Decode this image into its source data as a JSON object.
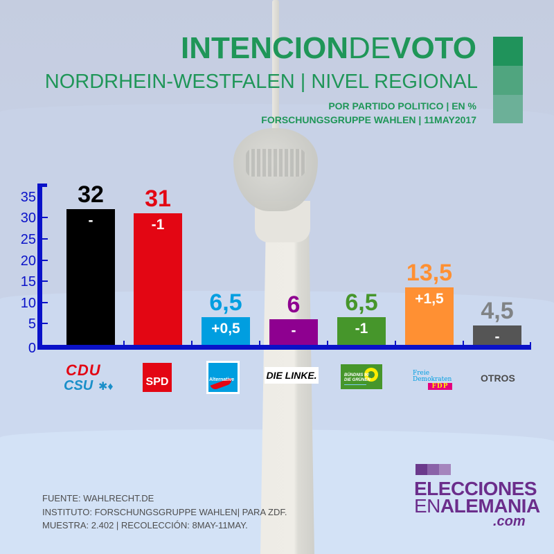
{
  "header": {
    "title_bold": "INTENCION",
    "title_thin": "DE",
    "title_bold2": "VOTO",
    "subtitle": "NORDRHEIN-WESTFALEN | NIVEL REGIONAL",
    "meta_line1": "POR PARTIDO POLITICO | EN %",
    "meta_line2": "FORSCHUNGSGRUPPE WAHLEN | 11MAY2017",
    "swatch_colors": [
      "#20935b",
      "#50a57f",
      "#6cb098"
    ]
  },
  "chart_data": {
    "type": "bar",
    "title": "INTENCION DE VOTO - NORDRHEIN-WESTFALEN | NIVEL REGIONAL",
    "subtitle": "POR PARTIDO POLITICO | EN %",
    "xlabel": "",
    "ylabel": "",
    "ylim": [
      0,
      35
    ],
    "yticks": [
      "0",
      "5",
      "10",
      "15",
      "20",
      "25",
      "30",
      "35"
    ],
    "grid": false,
    "legend": "none",
    "categories": [
      "CDU/CSU",
      "SPD",
      "AfD",
      "DIE LINKE",
      "GRÜNE",
      "FDP",
      "OTROS"
    ],
    "values": [
      32,
      31,
      6.5,
      6,
      6.5,
      13.5,
      4.5
    ],
    "value_labels": [
      "32",
      "31",
      "6,5",
      "6",
      "6,5",
      "13,5",
      "4,5"
    ],
    "change_labels": [
      "-",
      "-1",
      "+0,5",
      "-",
      "-1",
      "+1,5",
      "-"
    ],
    "colors": [
      "#000000",
      "#e30613",
      "#009ee0",
      "#8e0090",
      "#46962b",
      "#ff9033",
      "#555555"
    ],
    "label_colors": [
      "#000000",
      "#e30613",
      "#009ee0",
      "#8e0090",
      "#46962b",
      "#ff9033",
      "#808385"
    ]
  },
  "logos": {
    "cdu": "CDU",
    "csu": "CSU",
    "csu_mark": "✱♦",
    "spd": "SPD",
    "afd": "Alternative",
    "linke": "DIE LINKE.",
    "gruene_line1": "BÜNDNIS 90",
    "gruene_line2": "DIE GRÜNEN",
    "fdp_line1": "Freie",
    "fdp_line2": "Demokraten",
    "fdp_box": "FDP",
    "otros": "OTROS"
  },
  "footer": {
    "line1": "FUENTE: WAHLRECHT.DE",
    "line2": "INSTITUTO: FORSCHUNGSGRUPPE WAHLEN| PARA ZDF.",
    "line3": "MUESTRA: 2.402 | RECOLECCIÓN: 8MAY-11MAY."
  },
  "brand": {
    "line1": "ELECCIONES",
    "line2_a": "EN",
    "line2_b": "ALEMANIA",
    "line3": ".com",
    "square_colors": [
      "#6b3a8c",
      "#8a62a8",
      "#a585bd"
    ]
  }
}
